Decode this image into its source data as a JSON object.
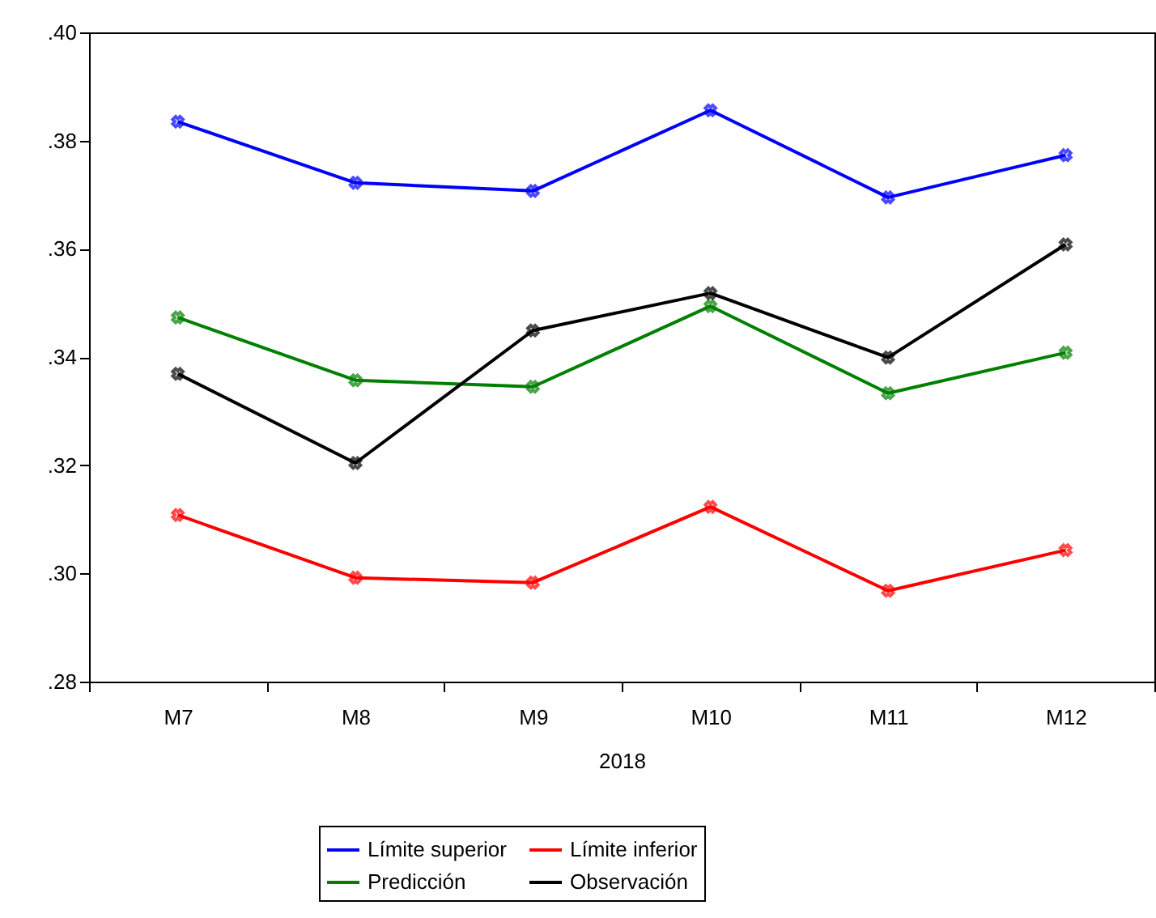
{
  "chart_data": {
    "type": "line",
    "xlabel": "2018",
    "categories": [
      "M7",
      "M8",
      "M9",
      "M10",
      "M11",
      "M12"
    ],
    "series": [
      {
        "name": "Límite superior",
        "color": "#0000ff",
        "values": [
          0.3835,
          0.3722,
          0.3707,
          0.3856,
          0.3695,
          0.3773
        ]
      },
      {
        "name": "Límite inferior",
        "color": "#ff0000",
        "values": [
          0.3108,
          0.2992,
          0.2983,
          0.3123,
          0.2968,
          0.3043
        ]
      },
      {
        "name": "Predicción",
        "color": "#008000",
        "values": [
          0.3473,
          0.3357,
          0.3345,
          0.3494,
          0.3333,
          0.3408
        ]
      },
      {
        "name": "Observación",
        "color": "#000000",
        "values": [
          0.3369,
          0.3204,
          0.3449,
          0.3518,
          0.3399,
          0.3608
        ]
      }
    ],
    "ylim": [
      0.28,
      0.4
    ],
    "yticks": [
      {
        "value": 0.28,
        "label": ".28"
      },
      {
        "value": 0.3,
        "label": ".30"
      },
      {
        "value": 0.32,
        "label": ".32"
      },
      {
        "value": 0.34,
        "label": ".34"
      },
      {
        "value": 0.36,
        "label": ".36"
      },
      {
        "value": 0.38,
        "label": ".38"
      },
      {
        "value": 0.4,
        "label": ".40"
      }
    ],
    "grid": false,
    "legend": "bottom",
    "marker": "cross",
    "line_style": "solid"
  }
}
